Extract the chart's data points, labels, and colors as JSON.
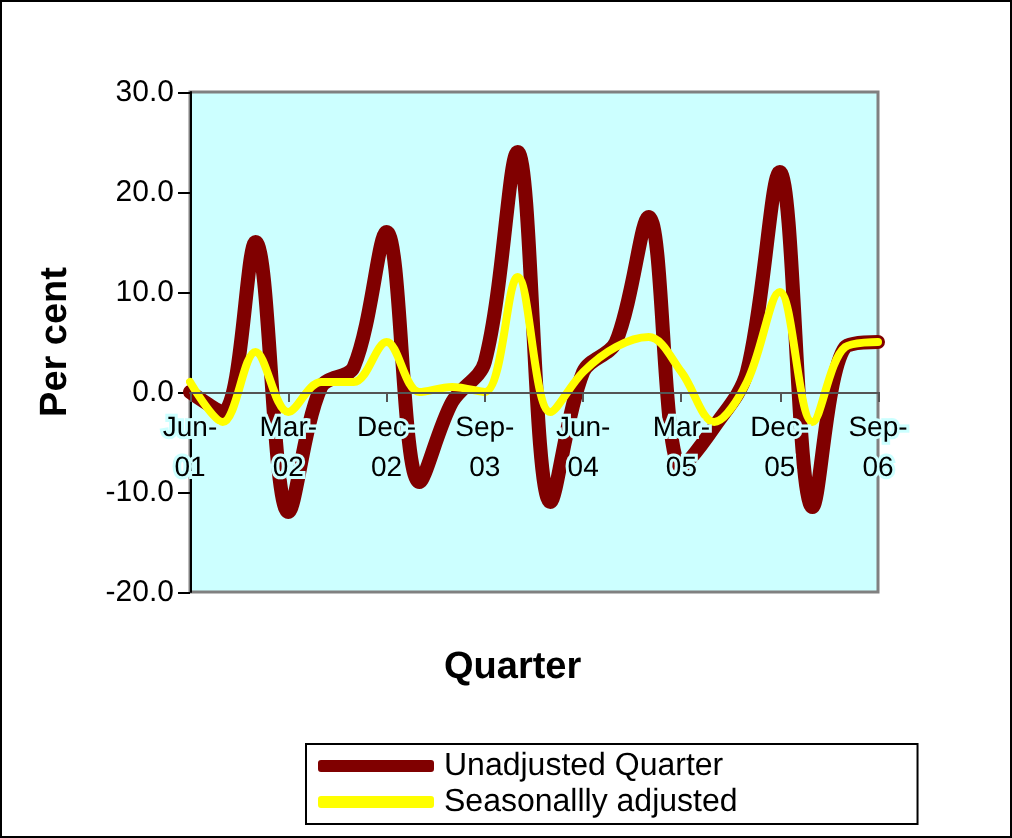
{
  "chart_data": {
    "type": "line",
    "xlabel": "Quarter",
    "ylabel": "Per cent",
    "categories": [
      "Jun-01",
      null,
      null,
      "Mar-02",
      null,
      null,
      "Dec-02",
      null,
      null,
      "Sep-03",
      null,
      null,
      "Jun-04",
      null,
      null,
      "Mar-05",
      null,
      null,
      "Dec-05",
      null,
      null,
      "Sep-06"
    ],
    "series": [
      {
        "name": "Unadjusted Quarter",
        "color": "#800000",
        "values": [
          0,
          -2,
          15,
          -12,
          0.5,
          2.5,
          16,
          -9,
          -1,
          3,
          24,
          -11,
          2,
          5,
          17.5,
          -7.5,
          -3.5,
          2,
          22,
          -11.5,
          4.5,
          5
        ]
      },
      {
        "name": "Seasonallly adjusted",
        "color": "#ffff00",
        "values": [
          1,
          -3,
          4,
          -2,
          1,
          1,
          5,
          0,
          0.5,
          0,
          11.5,
          -2,
          2,
          4.5,
          5.5,
          2,
          -3,
          1,
          10,
          -3,
          4.5,
          5
        ]
      }
    ],
    "ylim": [
      -20,
      30
    ],
    "yticks": [
      {
        "value": -20,
        "label": "-20.0"
      },
      {
        "value": -10,
        "label": "-10.0"
      },
      {
        "value": 0,
        "label": "0.0"
      },
      {
        "value": 10,
        "label": "10.0"
      },
      {
        "value": 20,
        "label": "20.0"
      },
      {
        "value": 30,
        "label": "30.0"
      }
    ],
    "legend": "bottom",
    "marker": "none",
    "line_style": "solid"
  }
}
